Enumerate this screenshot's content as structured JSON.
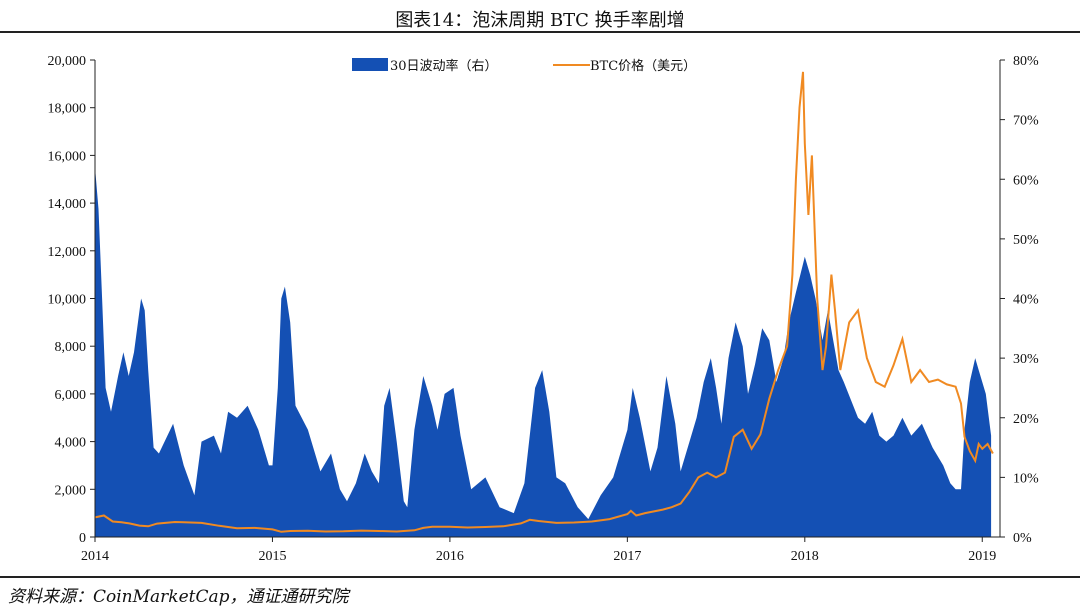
{
  "title": "图表14：泡沫周期 BTC 换手率剧增",
  "source": "资料来源：CoinMarketCap，通证通研究院",
  "colors": {
    "volatility": "#1450b4",
    "price": "#f08a22",
    "axis": "#222222"
  },
  "chart_data": {
    "type": "area+line",
    "x": {
      "min": 2014.0,
      "max": 2019.1,
      "ticks": [
        "2014",
        "2015",
        "2016",
        "2017",
        "2018",
        "2019"
      ]
    },
    "y_left": {
      "min": 0,
      "max": 20000,
      "ticks": [
        "0",
        "2,000",
        "4,000",
        "6,000",
        "8,000",
        "10,000",
        "12,000",
        "14,000",
        "16,000",
        "18,000",
        "20,000"
      ]
    },
    "y_right": {
      "min": 0,
      "max": 80,
      "ticks": [
        "0%",
        "10%",
        "20%",
        "30%",
        "40%",
        "50%",
        "60%",
        "70%",
        "80%"
      ]
    },
    "series": [
      {
        "name": "30日波动率（右）",
        "type": "area",
        "axis": "right",
        "unit": "%",
        "points": [
          [
            2014.0,
            62
          ],
          [
            2014.02,
            55
          ],
          [
            2014.04,
            40
          ],
          [
            2014.06,
            25
          ],
          [
            2014.09,
            21
          ],
          [
            2014.13,
            27
          ],
          [
            2014.16,
            31
          ],
          [
            2014.19,
            27
          ],
          [
            2014.22,
            31
          ],
          [
            2014.26,
            40
          ],
          [
            2014.28,
            38
          ],
          [
            2014.3,
            28
          ],
          [
            2014.33,
            15
          ],
          [
            2014.36,
            14
          ],
          [
            2014.44,
            19
          ],
          [
            2014.5,
            12
          ],
          [
            2014.56,
            7
          ],
          [
            2014.6,
            16
          ],
          [
            2014.67,
            17
          ],
          [
            2014.71,
            14
          ],
          [
            2014.75,
            21
          ],
          [
            2014.8,
            20
          ],
          [
            2014.86,
            22
          ],
          [
            2014.92,
            18
          ],
          [
            2014.98,
            12
          ],
          [
            2015.0,
            12
          ],
          [
            2015.03,
            25
          ],
          [
            2015.05,
            40
          ],
          [
            2015.07,
            42
          ],
          [
            2015.1,
            36
          ],
          [
            2015.13,
            22
          ],
          [
            2015.2,
            18
          ],
          [
            2015.27,
            11
          ],
          [
            2015.33,
            14
          ],
          [
            2015.38,
            8
          ],
          [
            2015.42,
            6
          ],
          [
            2015.47,
            9
          ],
          [
            2015.52,
            14
          ],
          [
            2015.56,
            11
          ],
          [
            2015.6,
            9
          ],
          [
            2015.63,
            22
          ],
          [
            2015.66,
            25
          ],
          [
            2015.7,
            16
          ],
          [
            2015.74,
            6
          ],
          [
            2015.76,
            5
          ],
          [
            2015.8,
            18
          ],
          [
            2015.85,
            27
          ],
          [
            2015.9,
            22
          ],
          [
            2015.93,
            18
          ],
          [
            2015.97,
            24
          ],
          [
            2016.02,
            25
          ],
          [
            2016.06,
            17
          ],
          [
            2016.12,
            8
          ],
          [
            2016.2,
            10
          ],
          [
            2016.28,
            5
          ],
          [
            2016.36,
            4
          ],
          [
            2016.42,
            9
          ],
          [
            2016.48,
            25
          ],
          [
            2016.52,
            28
          ],
          [
            2016.56,
            21
          ],
          [
            2016.6,
            10
          ],
          [
            2016.65,
            9
          ],
          [
            2016.72,
            5
          ],
          [
            2016.78,
            3
          ],
          [
            2016.85,
            7
          ],
          [
            2016.92,
            10
          ],
          [
            2017.0,
            18
          ],
          [
            2017.03,
            25
          ],
          [
            2017.07,
            20
          ],
          [
            2017.13,
            11
          ],
          [
            2017.17,
            15
          ],
          [
            2017.22,
            27
          ],
          [
            2017.27,
            19
          ],
          [
            2017.3,
            11
          ],
          [
            2017.35,
            16
          ],
          [
            2017.39,
            20
          ],
          [
            2017.43,
            26
          ],
          [
            2017.47,
            30
          ],
          [
            2017.5,
            25
          ],
          [
            2017.53,
            19
          ],
          [
            2017.57,
            30
          ],
          [
            2017.61,
            36
          ],
          [
            2017.65,
            32
          ],
          [
            2017.68,
            24
          ],
          [
            2017.72,
            29
          ],
          [
            2017.76,
            35
          ],
          [
            2017.8,
            33
          ],
          [
            2017.84,
            26
          ],
          [
            2017.88,
            30
          ],
          [
            2017.91,
            36
          ],
          [
            2017.95,
            41
          ],
          [
            2018.0,
            47
          ],
          [
            2018.03,
            44
          ],
          [
            2018.06,
            40
          ],
          [
            2018.1,
            33
          ],
          [
            2018.13,
            38
          ],
          [
            2018.16,
            33
          ],
          [
            2018.19,
            28
          ],
          [
            2018.22,
            26
          ],
          [
            2018.26,
            23
          ],
          [
            2018.3,
            20
          ],
          [
            2018.34,
            19
          ],
          [
            2018.38,
            21
          ],
          [
            2018.42,
            17
          ],
          [
            2018.46,
            16
          ],
          [
            2018.5,
            17
          ],
          [
            2018.55,
            20
          ],
          [
            2018.6,
            17
          ],
          [
            2018.66,
            19
          ],
          [
            2018.72,
            15
          ],
          [
            2018.78,
            12
          ],
          [
            2018.82,
            9
          ],
          [
            2018.85,
            8
          ],
          [
            2018.88,
            8
          ],
          [
            2018.9,
            18
          ],
          [
            2018.93,
            26
          ],
          [
            2018.96,
            30
          ],
          [
            2018.98,
            28
          ],
          [
            2019.02,
            24
          ],
          [
            2019.05,
            17
          ]
        ]
      },
      {
        "name": "BTC价格（美元）",
        "type": "line",
        "axis": "left",
        "unit": "USD",
        "points": [
          [
            2014.0,
            820
          ],
          [
            2014.05,
            900
          ],
          [
            2014.1,
            650
          ],
          [
            2014.15,
            620
          ],
          [
            2014.2,
            560
          ],
          [
            2014.25,
            480
          ],
          [
            2014.3,
            450
          ],
          [
            2014.35,
            560
          ],
          [
            2014.45,
            630
          ],
          [
            2014.5,
            620
          ],
          [
            2014.6,
            590
          ],
          [
            2014.7,
            470
          ],
          [
            2014.8,
            370
          ],
          [
            2014.9,
            380
          ],
          [
            2015.0,
            320
          ],
          [
            2015.05,
            220
          ],
          [
            2015.1,
            250
          ],
          [
            2015.2,
            260
          ],
          [
            2015.3,
            230
          ],
          [
            2015.4,
            240
          ],
          [
            2015.5,
            270
          ],
          [
            2015.6,
            250
          ],
          [
            2015.7,
            230
          ],
          [
            2015.8,
            280
          ],
          [
            2015.85,
            380
          ],
          [
            2015.9,
            430
          ],
          [
            2016.0,
            430
          ],
          [
            2016.1,
            400
          ],
          [
            2016.2,
            420
          ],
          [
            2016.3,
            450
          ],
          [
            2016.4,
            570
          ],
          [
            2016.45,
            720
          ],
          [
            2016.5,
            670
          ],
          [
            2016.6,
            590
          ],
          [
            2016.7,
            610
          ],
          [
            2016.8,
            650
          ],
          [
            2016.9,
            750
          ],
          [
            2017.0,
            960
          ],
          [
            2017.02,
            1100
          ],
          [
            2017.05,
            900
          ],
          [
            2017.1,
            1000
          ],
          [
            2017.2,
            1150
          ],
          [
            2017.25,
            1250
          ],
          [
            2017.3,
            1400
          ],
          [
            2017.35,
            1900
          ],
          [
            2017.4,
            2500
          ],
          [
            2017.45,
            2700
          ],
          [
            2017.5,
            2500
          ],
          [
            2017.55,
            2700
          ],
          [
            2017.6,
            4200
          ],
          [
            2017.65,
            4500
          ],
          [
            2017.7,
            3700
          ],
          [
            2017.75,
            4300
          ],
          [
            2017.8,
            5800
          ],
          [
            2017.85,
            7000
          ],
          [
            2017.9,
            8000
          ],
          [
            2017.93,
            11000
          ],
          [
            2017.95,
            15000
          ],
          [
            2017.97,
            18000
          ],
          [
            2017.99,
            19500
          ],
          [
            2018.0,
            16500
          ],
          [
            2018.02,
            13500
          ],
          [
            2018.04,
            16000
          ],
          [
            2018.07,
            10000
          ],
          [
            2018.1,
            7000
          ],
          [
            2018.12,
            8000
          ],
          [
            2018.15,
            11000
          ],
          [
            2018.17,
            9500
          ],
          [
            2018.2,
            7000
          ],
          [
            2018.25,
            9000
          ],
          [
            2018.3,
            9500
          ],
          [
            2018.35,
            7500
          ],
          [
            2018.4,
            6500
          ],
          [
            2018.45,
            6300
          ],
          [
            2018.5,
            7200
          ],
          [
            2018.55,
            8300
          ],
          [
            2018.6,
            6500
          ],
          [
            2018.65,
            7000
          ],
          [
            2018.7,
            6500
          ],
          [
            2018.75,
            6600
          ],
          [
            2018.8,
            6400
          ],
          [
            2018.85,
            6300
          ],
          [
            2018.88,
            5600
          ],
          [
            2018.9,
            4200
          ],
          [
            2018.93,
            3600
          ],
          [
            2018.96,
            3200
          ],
          [
            2018.98,
            3900
          ],
          [
            2019.0,
            3700
          ],
          [
            2019.03,
            3900
          ],
          [
            2019.06,
            3500
          ]
        ]
      }
    ]
  }
}
